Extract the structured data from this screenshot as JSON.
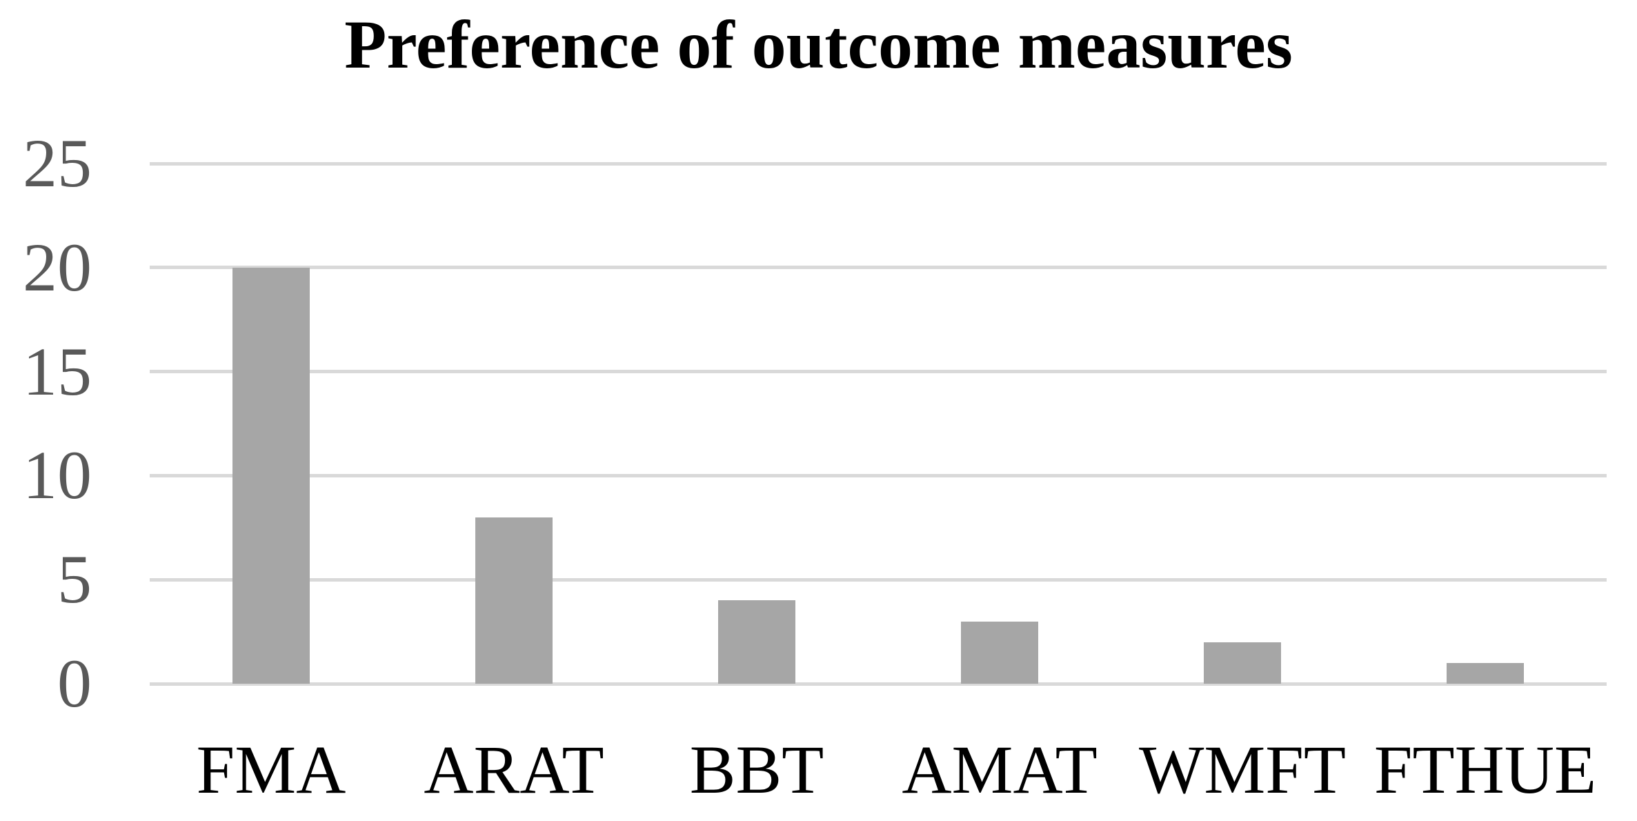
{
  "chart_data": {
    "type": "bar",
    "title": "Preference of outcome measures",
    "categories": [
      "FMA",
      "ARAT",
      "BBT",
      "AMAT",
      "WMFT",
      "FTHUE"
    ],
    "values": [
      20,
      8,
      4,
      3,
      2,
      1
    ],
    "xlabel": "",
    "ylabel": "",
    "ylim": [
      0,
      25
    ],
    "yticks": [
      0,
      5,
      10,
      15,
      20,
      25
    ],
    "grid": true,
    "legend_position": "none",
    "colors": {
      "bar": "#a6a6a6",
      "gridline": "#d9d9d9",
      "ytick_label": "#595959",
      "xtick_label": "#000000",
      "title": "#000000",
      "background": "#ffffff"
    }
  }
}
